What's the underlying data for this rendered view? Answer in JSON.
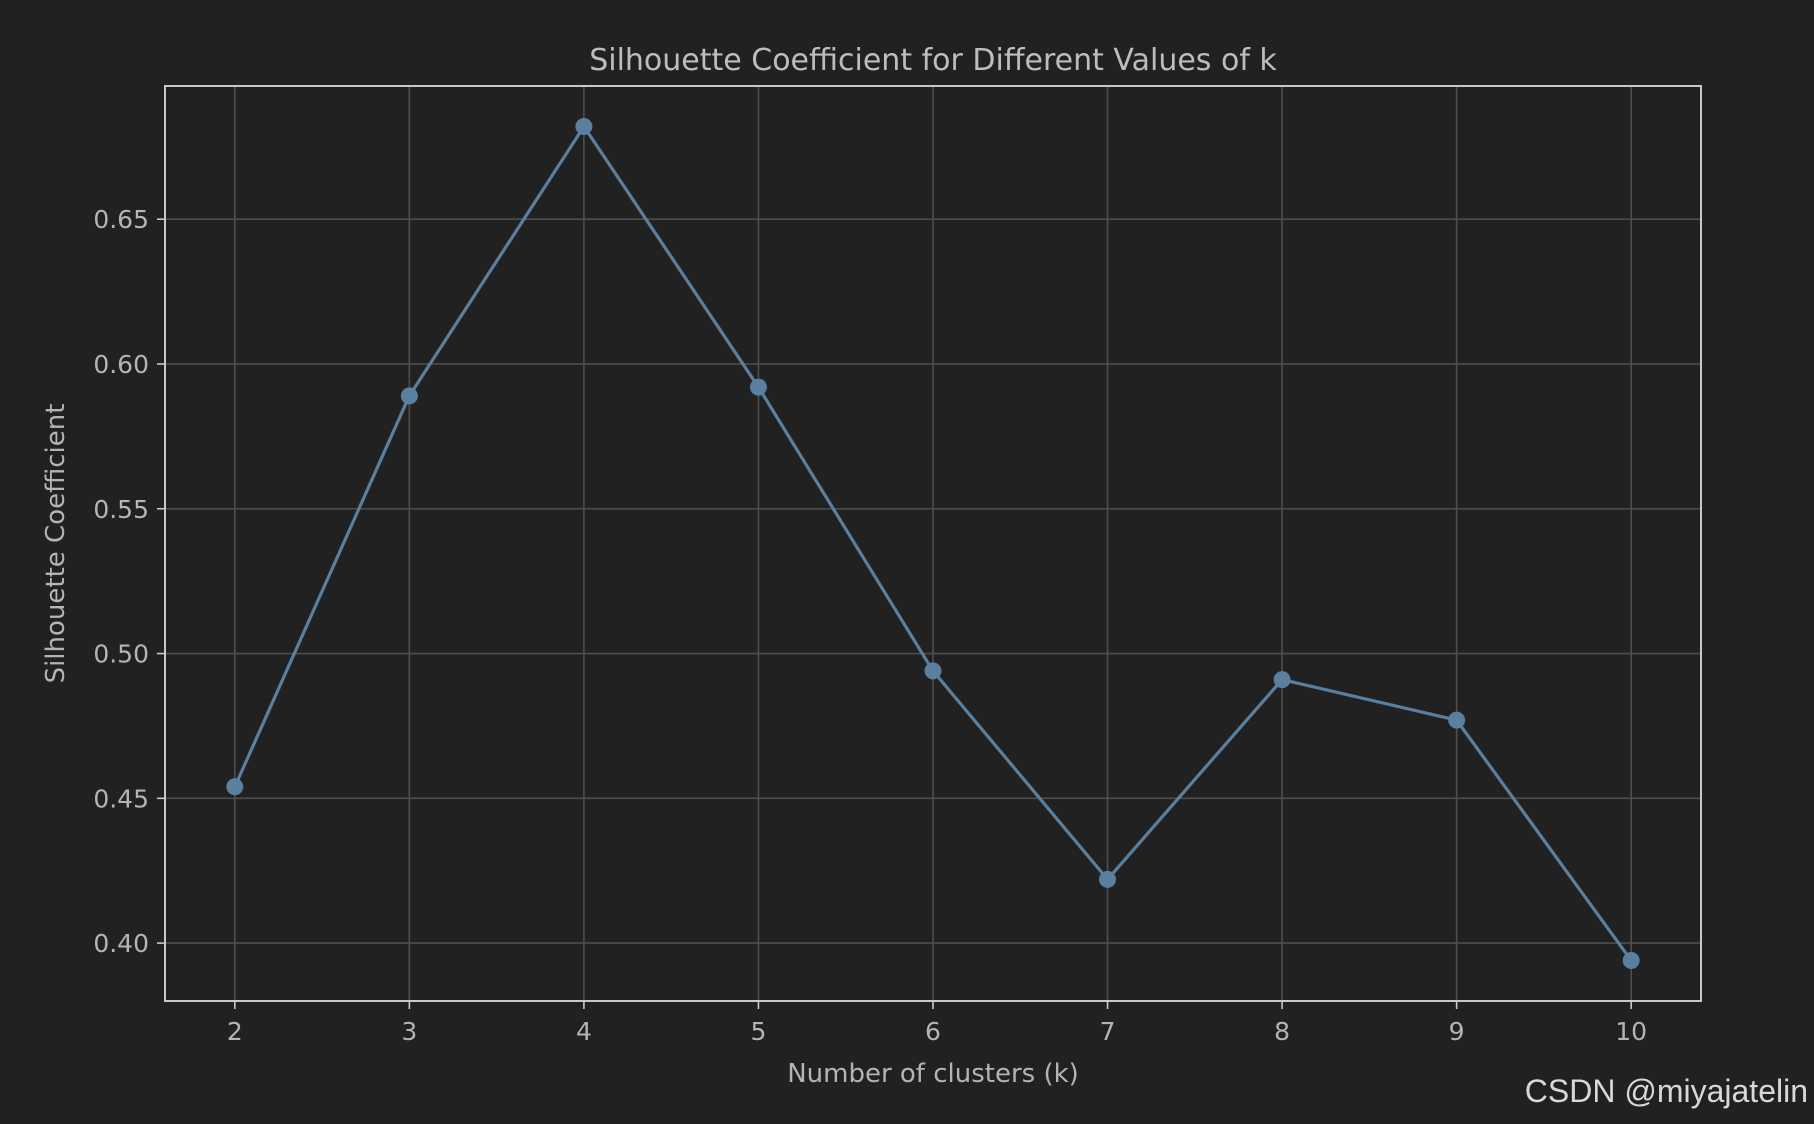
{
  "chart_data": {
    "type": "line",
    "title": "Silhouette Coefficient for Different Values of k",
    "xlabel": "Number of clusters (k)",
    "ylabel": "Silhouette Coefficient",
    "x": [
      2,
      3,
      4,
      5,
      6,
      7,
      8,
      9,
      10
    ],
    "series": [
      {
        "values": [
          0.454,
          0.589,
          0.682,
          0.592,
          0.494,
          0.422,
          0.491,
          0.477,
          0.394
        ],
        "color": "#5b7f9e",
        "marker": "circle"
      }
    ],
    "xticks": [
      "2",
      "3",
      "4",
      "5",
      "6",
      "7",
      "8",
      "9",
      "10"
    ],
    "yticks": [
      "0.40",
      "0.45",
      "0.50",
      "0.55",
      "0.60",
      "0.65"
    ],
    "xlim": [
      1.6,
      10.4
    ],
    "ylim": [
      0.38,
      0.696
    ],
    "grid": true,
    "colors": {
      "background": "#212121",
      "grid": "#4e4e4e",
      "frame": "#c8c8c8",
      "text": "#b4b4b4"
    }
  },
  "watermark": "CSDN @miyajatelin"
}
